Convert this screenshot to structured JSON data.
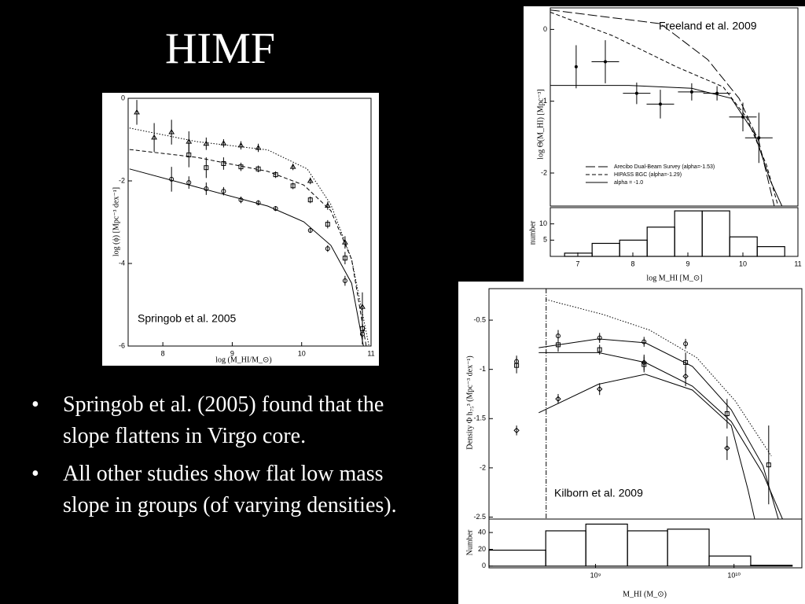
{
  "slide": {
    "title": "HIMF",
    "bullets": [
      "Springob et al. (2005) found that the slope flattens in Virgo core.",
      "All other studies show flat low mass slope in groups (of varying densities)."
    ]
  },
  "chart_data": [
    {
      "type": "scatter",
      "annotation": "Springob et al. 2005",
      "xlabel": "log (M_HI/M_⊙)",
      "ylabel": "log (ϕ) [Mpc⁻³ dex⁻¹]",
      "color": "#000000",
      "xlim": [
        7.5,
        11
      ],
      "ylim": [
        -6,
        0
      ],
      "xticks": [
        8,
        9,
        10,
        11
      ],
      "yticks": [
        0,
        -2,
        -4,
        -6
      ],
      "series": [
        {
          "marker": "triangle",
          "x": [
            7.625,
            7.875,
            8.125,
            8.375,
            8.625,
            8.875,
            9.125,
            9.375,
            9.875,
            10.125,
            10.375,
            10.625,
            10.875
          ],
          "values": [
            -0.34,
            -0.95,
            -0.82,
            -1.05,
            -1.1,
            -1.09,
            -1.14,
            -1.2,
            -1.66,
            -2.0,
            -2.6,
            -3.49,
            -5.05
          ],
          "errors": [
            0.3,
            0.35,
            0.3,
            0.25,
            0.15,
            0.1,
            0.1,
            0.1,
            0.08,
            0.08,
            0.1,
            0.15,
            0.35
          ]
        },
        {
          "marker": "square",
          "x": [
            8.375,
            8.625,
            8.875,
            9.125,
            9.375,
            9.625,
            9.875,
            10.125,
            10.375,
            10.625,
            10.875
          ],
          "values": [
            -1.37,
            -1.68,
            -1.58,
            -1.66,
            -1.71,
            -1.85,
            -2.12,
            -2.46,
            -3.05,
            -3.87,
            -5.58
          ],
          "errors": [
            0.3,
            0.25,
            0.15,
            0.1,
            0.08,
            0.08,
            0.08,
            0.08,
            0.1,
            0.15,
            0.3
          ]
        },
        {
          "marker": "circle",
          "x": [
            8.125,
            8.375,
            8.625,
            8.875,
            9.125,
            9.375,
            9.625,
            10.125,
            10.375,
            10.625,
            10.875
          ],
          "values": [
            -1.96,
            -2.04,
            -2.19,
            -2.25,
            -2.46,
            -2.53,
            -2.67,
            -3.2,
            -3.64,
            -4.42,
            -5.71
          ],
          "errors": [
            0.3,
            0.15,
            0.15,
            0.1,
            0.08,
            0.06,
            0.06,
            0.06,
            0.08,
            0.12,
            0.25
          ]
        },
        {
          "style": "dotted",
          "x": [
            7.52,
            8.49,
            9.51,
            10.08,
            10.42,
            10.72,
            10.97
          ],
          "values": [
            -0.72,
            -1.05,
            -1.25,
            -1.71,
            -2.57,
            -3.9,
            -6
          ]
        },
        {
          "style": "dashed",
          "x": [
            7.52,
            8.49,
            9.51,
            10.03,
            10.42,
            10.72,
            10.93
          ],
          "values": [
            -1.24,
            -1.43,
            -1.77,
            -2.1,
            -2.72,
            -3.9,
            -6
          ]
        },
        {
          "style": "solid",
          "x": [
            7.52,
            8.49,
            9.51,
            10.03,
            10.42,
            10.72,
            10.89
          ],
          "values": [
            -1.71,
            -2.15,
            -2.61,
            -2.99,
            -3.56,
            -4.48,
            -6
          ]
        }
      ]
    },
    {
      "type": "scatter",
      "annotation": "Freeland et al. 2009",
      "ylabel": "log Θ(M_HI) [Mpc⁻³]",
      "color": "#000000",
      "legend": "lower left",
      "xlim": [
        6.5,
        11
      ],
      "ylim": [
        -2.46,
        0.3
      ],
      "yticks": [
        0,
        -1,
        -2
      ],
      "series": [
        {
          "marker": "dot",
          "x": [
            6.97,
            7.5,
            8.07,
            8.5,
            9.07,
            9.53,
            10.0,
            10.29
          ],
          "values": [
            -0.52,
            -0.45,
            -0.89,
            -1.04,
            -0.87,
            -0.89,
            -1.22,
            -1.51
          ],
          "errors": [
            0.3,
            0.3,
            0.15,
            0.2,
            0.12,
            0.1,
            0.2,
            0.35
          ],
          "xerrors": [
            0,
            0.25,
            0.25,
            0.25,
            0.25,
            0.25,
            0.25,
            0.25
          ]
        },
        {
          "name": "Arecibo Dual-Beam Survey (alpha=-1.53)",
          "style": "longdash",
          "x": [
            6.5,
            8.5,
            9.36,
            9.93,
            10.29,
            10.57
          ],
          "values": [
            0.27,
            0.08,
            -0.42,
            -0.96,
            -1.56,
            -2.46
          ]
        },
        {
          "name": "HIPASS BGC (alpha=-1.29)",
          "style": "dashed",
          "x": [
            6.5,
            7.64,
            8.79,
            9.64,
            10.07,
            10.43,
            10.64
          ],
          "values": [
            0.24,
            -0.09,
            -0.52,
            -0.8,
            -1.23,
            -1.89,
            -2.46
          ]
        },
        {
          "name": "alpha = -1.0",
          "style": "solid",
          "x": [
            6.5,
            7.93,
            9.07,
            9.79,
            10.21,
            10.5,
            10.71
          ],
          "values": [
            -0.78,
            -0.78,
            -0.82,
            -0.96,
            -1.45,
            -2.11,
            -2.46
          ]
        }
      ]
    },
    {
      "type": "histogram",
      "xlabel": "log M_HI [M_⊙]",
      "ylabel": "number",
      "color": "#000000",
      "xlim": [
        6.5,
        11
      ],
      "ylim": [
        0,
        15
      ],
      "xticks": [
        7,
        8,
        9,
        10,
        11
      ],
      "yticks": [
        5,
        10
      ],
      "bins": [
        6.76,
        7.26,
        7.76,
        8.26,
        8.76,
        9.26,
        9.76,
        10.26,
        10.76
      ],
      "values": [
        1,
        4,
        5,
        9,
        14,
        14,
        6,
        3
      ]
    },
    {
      "type": "scatter",
      "annotation": "Kilborn et al. 2009",
      "ylabel": "Density Φ h₇₅³ (Mpc⁻³ dex⁻¹)",
      "color": "#000000",
      "xlog": true,
      "xlim": [
        170000000,
        30900000000
      ],
      "ylim": [
        -2.52,
        -0.18
      ],
      "yticks": [
        -0.5,
        -1,
        -1.5,
        -2,
        -2.5
      ],
      "vline": 440000000,
      "series": [
        {
          "marker": "circle",
          "x": [
            269000000,
            537000000,
            1070000000,
            2240000000,
            4470000000
          ],
          "values": [
            -0.92,
            -0.66,
            -0.68,
            -0.72,
            -0.74
          ],
          "errors": [
            0.06,
            0.06,
            0.05,
            0.05,
            0.05
          ]
        },
        {
          "marker": "square",
          "x": [
            269000000,
            537000000,
            1070000000,
            2240000000,
            4470000000,
            8910000000,
            17800000000
          ],
          "values": [
            -0.96,
            -0.75,
            -0.8,
            -0.95,
            -0.93,
            -1.45,
            -1.97
          ],
          "errors": [
            0.08,
            0.07,
            0.05,
            0.08,
            0.1,
            0.15,
            0.4
          ]
        },
        {
          "marker": "diamond",
          "x": [
            269000000,
            537000000,
            1070000000,
            2240000000,
            4470000000,
            8910000000
          ],
          "values": [
            -1.62,
            -1.3,
            -1.2,
            -0.93,
            -1.07,
            -1.8
          ],
          "errors": [
            0.05,
            0.05,
            0.06,
            0.08,
            0.1,
            0.12
          ]
        },
        {
          "style": "dotted",
          "x": [
            437000000,
            1120000000,
            2450000000,
            5370000000,
            10200000000,
            18600000000
          ],
          "values": [
            -0.29,
            -0.44,
            -0.6,
            -0.88,
            -1.32,
            -1.88
          ]
        },
        {
          "style": "solid",
          "x": [
            389000000,
            1050000000,
            2290000000,
            5010000000,
            9550000000,
            16200000000,
            20900000000
          ],
          "values": [
            -0.78,
            -0.69,
            -0.73,
            -0.97,
            -1.41,
            -1.98,
            -2.52
          ]
        },
        {
          "style": "solid",
          "x": [
            389000000,
            1050000000,
            2290000000,
            5010000000,
            9550000000,
            16200000000,
            22400000000
          ],
          "values": [
            -0.83,
            -0.83,
            -0.93,
            -1.17,
            -1.53,
            -2.06,
            -2.52
          ]
        },
        {
          "style": "solid",
          "x": [
            389000000,
            1050000000,
            2290000000,
            5010000000,
            9550000000,
            12600000000,
            14100000000
          ],
          "values": [
            -1.44,
            -1.15,
            -1.05,
            -1.21,
            -1.57,
            -2.22,
            -2.52
          ]
        }
      ]
    },
    {
      "type": "histogram",
      "xlabel": "M_HI (M_⊙)",
      "ylabel": "Number",
      "color": "#000000",
      "xlog": true,
      "xlim": [
        170000000,
        30900000000
      ],
      "ylim": [
        -2,
        56
      ],
      "xticks": [
        {
          "value": 1000000000,
          "label": "10⁹"
        },
        {
          "value": 10000000000,
          "label": "10¹⁰"
        }
      ],
      "yticks": [
        0,
        20,
        40
      ],
      "bins": [
        170000000,
        437000000,
        851000000,
        1700000000,
        3310000000,
        6610000000,
        13200000000,
        26300000000
      ],
      "values": [
        19,
        42,
        50,
        42,
        44,
        12,
        1
      ]
    }
  ]
}
